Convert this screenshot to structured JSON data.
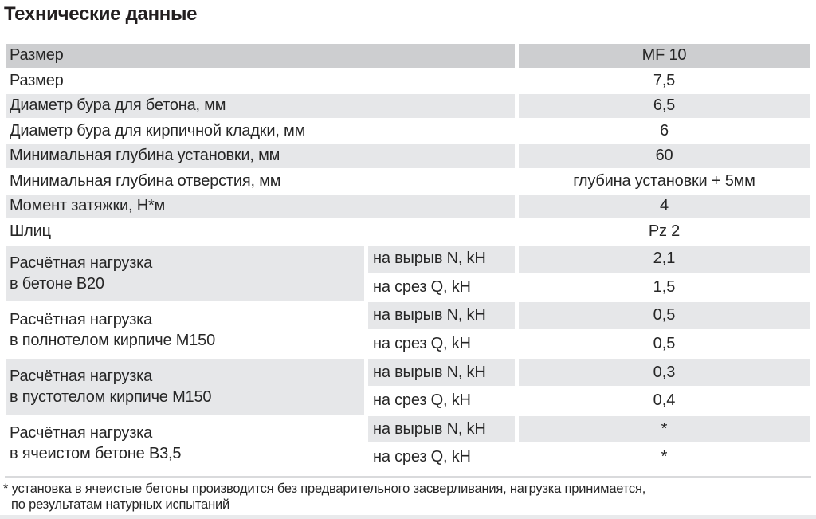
{
  "title": "Технические данные",
  "colors": {
    "header_row_bg": "#cdced0",
    "alt_row_bg": "#e6e7e9",
    "text": "#262626",
    "separator_line": "#d9dadc",
    "bottom_strip": "#e9eaec"
  },
  "table": {
    "simple_rows": [
      {
        "label": "Размер",
        "value": "MF 10"
      },
      {
        "label": "Размер",
        "value": "7,5"
      },
      {
        "label": "Диаметр бура для бетона, мм",
        "value": "6,5"
      },
      {
        "label": "Диаметр бура для кирпичной кладки, мм",
        "value": "6"
      },
      {
        "label": "Минимальная глубина установки, мм",
        "value": "60"
      },
      {
        "label": "Минимальная глубина отверстия, мм",
        "value": "глубина установки + 5мм"
      },
      {
        "label": "Момент затяжки, Н*м",
        "value": "4"
      },
      {
        "label": "Шлиц",
        "value": "Pz 2"
      }
    ],
    "group_rows": [
      {
        "label_line1": "Расчётная нагрузка",
        "label_line2": "в бетоне В20",
        "sub": [
          {
            "param": "на вырыв N, kН",
            "value": "2,1"
          },
          {
            "param": "на срез Q, kН",
            "value": "1,5"
          }
        ]
      },
      {
        "label_line1": "Расчётная нагрузка",
        "label_line2": "в полнотелом кирпиче М150",
        "sub": [
          {
            "param": "на вырыв N, kН",
            "value": "0,5"
          },
          {
            "param": "на срез Q, kН",
            "value": "0,5"
          }
        ]
      },
      {
        "label_line1": "Расчётная нагрузка",
        "label_line2": "в пустотелом кирпиче М150",
        "sub": [
          {
            "param": "на вырыв N, kН",
            "value": "0,3"
          },
          {
            "param": "на срез Q, kН",
            "value": "0,4"
          }
        ]
      },
      {
        "label_line1": "Расчётная нагрузка",
        "label_line2": "в ячеистом бетоне В3,5",
        "sub": [
          {
            "param": "на вырыв N, kН",
            "value": "*"
          },
          {
            "param": "на срез Q, kН",
            "value": "*"
          }
        ]
      }
    ]
  },
  "footnote": {
    "line1": "* установка в ячеистые бетоны производится без предварительного засверливания, нагрузка принимается,",
    "line2": "по результатам натурных испытаний"
  }
}
